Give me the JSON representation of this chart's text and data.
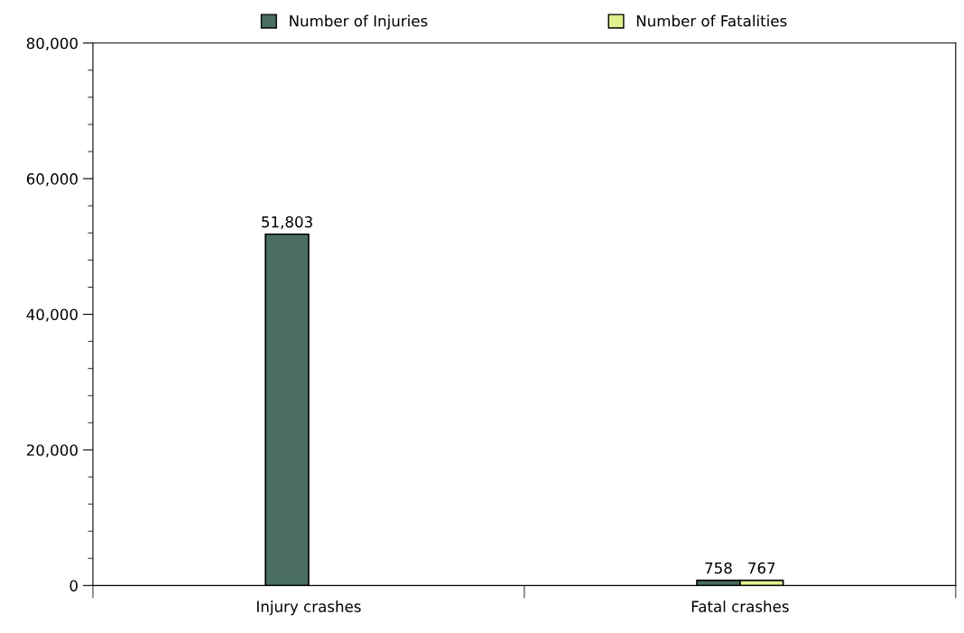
{
  "chart_data": {
    "type": "bar",
    "categories": [
      "Injury crashes",
      "Fatal crashes"
    ],
    "series": [
      {
        "name": "Number of Injuries",
        "color": "#4a6e60",
        "values": [
          51803,
          758
        ]
      },
      {
        "name": "Number of Fatalities",
        "color": "#e0f08c",
        "values": [
          null,
          767
        ]
      }
    ],
    "ylim": [
      0,
      80000
    ],
    "yticks": [
      0,
      {
        "value": 4000,
        "label": null
      },
      {
        "value": 8000,
        "label": null
      },
      {
        "value": 12000,
        "label": null
      },
      {
        "value": 16000,
        "label": null
      },
      {
        "value": 20000,
        "label": "20,000"
      },
      {
        "value": 24000,
        "label": null
      },
      {
        "value": 28000,
        "label": null
      },
      {
        "value": 32000,
        "label": null
      },
      {
        "value": 36000,
        "label": null
      },
      {
        "value": 40000,
        "label": "40,000"
      },
      {
        "value": 44000,
        "label": null
      },
      {
        "value": 48000,
        "label": null
      },
      {
        "value": 52000,
        "label": null
      },
      {
        "value": 56000,
        "label": null
      },
      {
        "value": 60000,
        "label": "60,000"
      },
      {
        "value": 64000,
        "label": null
      },
      {
        "value": 68000,
        "label": null
      },
      {
        "value": 72000,
        "label": null
      },
      {
        "value": 76000,
        "label": null
      },
      {
        "value": 80000,
        "label": "80,000"
      }
    ],
    "value_labels": [
      [
        "51,803",
        "758"
      ],
      [
        null,
        "767"
      ]
    ],
    "legend": "top",
    "grid": false
  }
}
